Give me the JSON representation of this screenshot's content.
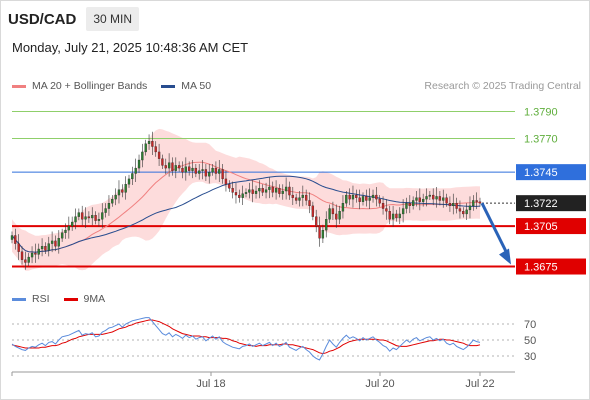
{
  "header": {
    "symbol": "USD/CAD",
    "timeframe": "30 MIN",
    "datetime": "Monday, July 21, 2025 10:48:36 AM CET"
  },
  "legend": {
    "ma20_label": "MA 20 + Bollinger Bands",
    "ma50_label": "MA 50",
    "copyright": "Research © 2025 Trading Central"
  },
  "rsi_legend": {
    "rsi_label": "RSI",
    "ma_label": "9MA"
  },
  "colors": {
    "resistance": "#8fcf6a",
    "pivot": "#2f6fdc",
    "support": "#e00000",
    "current": "#222222",
    "arrow": "#2a63b8",
    "bull": "#2e7d32",
    "bear": "#c62828",
    "ma20": "#f08080",
    "ma50": "#284d8f",
    "band_fill": "#fdd6d6",
    "rsi": "#5b8cdc",
    "rsi_ma": "#e00000"
  },
  "chart_data": [
    {
      "type": "candlestick",
      "title": "USD/CAD 30 MIN",
      "x_ticks": [
        "Jul 18",
        "Jul 20",
        "Jul 22"
      ],
      "ylim": [
        1.3665,
        1.38
      ],
      "levels": [
        {
          "name": "resistance_2",
          "value": 1.379,
          "label": "1.3790",
          "style": "resistance"
        },
        {
          "name": "resistance_1",
          "value": 1.377,
          "label": "1.3770",
          "style": "resistance"
        },
        {
          "name": "pivot",
          "value": 1.3745,
          "label": "1.3745",
          "style": "pivot"
        },
        {
          "name": "last_price",
          "value": 1.3722,
          "label": "1.3722",
          "style": "current"
        },
        {
          "name": "support_1",
          "value": 1.3705,
          "label": "1.3705",
          "style": "support"
        },
        {
          "name": "support_2",
          "value": 1.3675,
          "label": "1.3675",
          "style": "support"
        }
      ],
      "arrow": {
        "from": 1.3722,
        "to": 1.3675
      },
      "close": [
        1.3698,
        1.3692,
        1.3686,
        1.368,
        1.3678,
        1.3682,
        1.3685,
        1.3684,
        1.3688,
        1.369,
        1.3687,
        1.3692,
        1.3694,
        1.369,
        1.3696,
        1.37,
        1.3702,
        1.3705,
        1.3708,
        1.3712,
        1.3715,
        1.371,
        1.3712,
        1.3711,
        1.3713,
        1.3709,
        1.371,
        1.3715,
        1.3718,
        1.3722,
        1.3725,
        1.3728,
        1.3732,
        1.373,
        1.3736,
        1.374,
        1.3744,
        1.3748,
        1.3754,
        1.376,
        1.3766,
        1.3768,
        1.3764,
        1.376,
        1.3755,
        1.375,
        1.3748,
        1.3752,
        1.3746,
        1.375,
        1.3748,
        1.3745,
        1.3749,
        1.3746,
        1.3748,
        1.3744,
        1.3746,
        1.3747,
        1.3742,
        1.3745,
        1.3748,
        1.3744,
        1.3747,
        1.374,
        1.3736,
        1.3733,
        1.373,
        1.3728,
        1.3726,
        1.3729,
        1.373,
        1.3732,
        1.3729,
        1.3731,
        1.3733,
        1.373,
        1.3732,
        1.3734,
        1.373,
        1.3733,
        1.3729,
        1.3731,
        1.3734,
        1.3728,
        1.3726,
        1.3724,
        1.3726,
        1.3728,
        1.3724,
        1.372,
        1.3712,
        1.3705,
        1.3696,
        1.3702,
        1.371,
        1.3718,
        1.3714,
        1.371,
        1.3716,
        1.3722,
        1.3728,
        1.3725,
        1.3728,
        1.3726,
        1.3723,
        1.3727,
        1.3724,
        1.3726,
        1.3728,
        1.3725,
        1.3722,
        1.3718,
        1.3716,
        1.371,
        1.3714,
        1.3711,
        1.3714,
        1.3718,
        1.3722,
        1.372,
        1.3724,
        1.3726,
        1.3723,
        1.3725,
        1.3727,
        1.3728,
        1.3725,
        1.3727,
        1.3724,
        1.3726,
        1.3722,
        1.372,
        1.3722,
        1.3718,
        1.3716,
        1.3714,
        1.3717,
        1.372,
        1.3724,
        1.3723,
        1.3722
      ]
    },
    {
      "type": "line",
      "title": "RSI",
      "ylim": [
        15,
        85
      ],
      "y_ticks": [
        70,
        50,
        30
      ],
      "series": [
        {
          "name": "RSI",
          "values": [
            45,
            42,
            40,
            38,
            37,
            40,
            42,
            41,
            44,
            46,
            43,
            47,
            48,
            45,
            50,
            54,
            55,
            56,
            58,
            60,
            62,
            56,
            58,
            57,
            59,
            54,
            55,
            60,
            62,
            65,
            66,
            68,
            70,
            66,
            70,
            72,
            74,
            75,
            76,
            77,
            78,
            78,
            73,
            68,
            63,
            58,
            56,
            59,
            54,
            57,
            55,
            52,
            56,
            53,
            55,
            51,
            53,
            54,
            49,
            52,
            55,
            51,
            54,
            48,
            45,
            43,
            41,
            40,
            39,
            42,
            43,
            45,
            42,
            44,
            46,
            43,
            45,
            47,
            43,
            46,
            42,
            44,
            47,
            41,
            39,
            37,
            40,
            42,
            38,
            35,
            30,
            27,
            25,
            33,
            42,
            50,
            45,
            41,
            47,
            52,
            56,
            52,
            54,
            52,
            49,
            53,
            50,
            52,
            54,
            50,
            47,
            43,
            41,
            36,
            40,
            38,
            42,
            46,
            50,
            47,
            51,
            53,
            49,
            51,
            53,
            54,
            50,
            52,
            49,
            51,
            46,
            44,
            46,
            42,
            40,
            38,
            41,
            45,
            50,
            48,
            47
          ]
        },
        {
          "name": "9MA",
          "values": [
            44,
            43,
            42,
            41,
            40,
            40,
            40,
            40,
            40,
            41,
            41,
            42,
            43,
            43,
            44,
            46,
            47,
            49,
            51,
            52,
            54,
            55,
            56,
            57,
            57,
            57,
            57,
            57,
            58,
            59,
            60,
            62,
            64,
            65,
            66,
            68,
            69,
            71,
            72,
            73,
            74,
            75,
            75,
            74,
            73,
            71,
            69,
            67,
            64,
            62,
            60,
            58,
            57,
            56,
            55,
            55,
            55,
            54,
            54,
            53,
            53,
            53,
            53,
            52,
            52,
            51,
            49,
            48,
            46,
            45,
            44,
            43,
            43,
            42,
            43,
            43,
            43,
            44,
            44,
            44,
            44,
            45,
            45,
            44,
            44,
            43,
            42,
            41,
            40,
            39,
            38,
            36,
            34,
            33,
            34,
            36,
            37,
            39,
            41,
            44,
            46,
            48,
            49,
            50,
            51,
            51,
            51,
            51,
            51,
            51,
            50,
            50,
            49,
            47,
            45,
            43,
            42,
            42,
            42,
            43,
            44,
            45,
            46,
            47,
            48,
            49,
            49,
            50,
            51,
            51,
            50,
            50,
            49,
            48,
            47,
            46,
            44,
            43,
            43,
            43,
            44
          ]
        }
      ]
    }
  ]
}
